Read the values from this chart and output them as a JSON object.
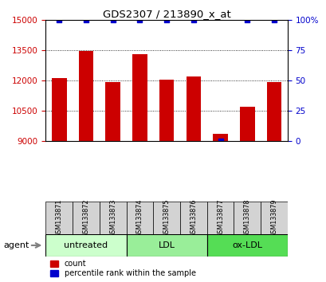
{
  "title": "GDS2307 / 213890_x_at",
  "samples": [
    "GSM133871",
    "GSM133872",
    "GSM133873",
    "GSM133874",
    "GSM133875",
    "GSM133876",
    "GSM133877",
    "GSM133878",
    "GSM133879"
  ],
  "counts": [
    12100,
    13450,
    11900,
    13300,
    12050,
    12200,
    9350,
    10700,
    11900
  ],
  "percentiles": [
    100,
    100,
    100,
    100,
    100,
    100,
    0,
    100,
    100
  ],
  "ylim_left": [
    9000,
    15000
  ],
  "yticks_left": [
    9000,
    10500,
    12000,
    13500,
    15000
  ],
  "ylim_right": [
    0,
    100
  ],
  "yticks_right": [
    0,
    25,
    50,
    75,
    100
  ],
  "ytick_labels_right": [
    "0",
    "25",
    "50",
    "75",
    "100%"
  ],
  "bar_color": "#cc0000",
  "dot_color": "#0000cc",
  "bar_width": 0.55,
  "groups": [
    {
      "label": "untreated",
      "indices": [
        0,
        1,
        2
      ],
      "color": "#ccffcc"
    },
    {
      "label": "LDL",
      "indices": [
        3,
        4,
        5
      ],
      "color": "#99ee99"
    },
    {
      "label": "ox-LDL",
      "indices": [
        6,
        7,
        8
      ],
      "color": "#55dd55"
    }
  ],
  "agent_label": "agent",
  "legend_count_label": "count",
  "legend_pct_label": "percentile rank within the sample",
  "grid_color": "#000000",
  "background_color": "#ffffff",
  "tick_area_color": "#d3d3d3"
}
